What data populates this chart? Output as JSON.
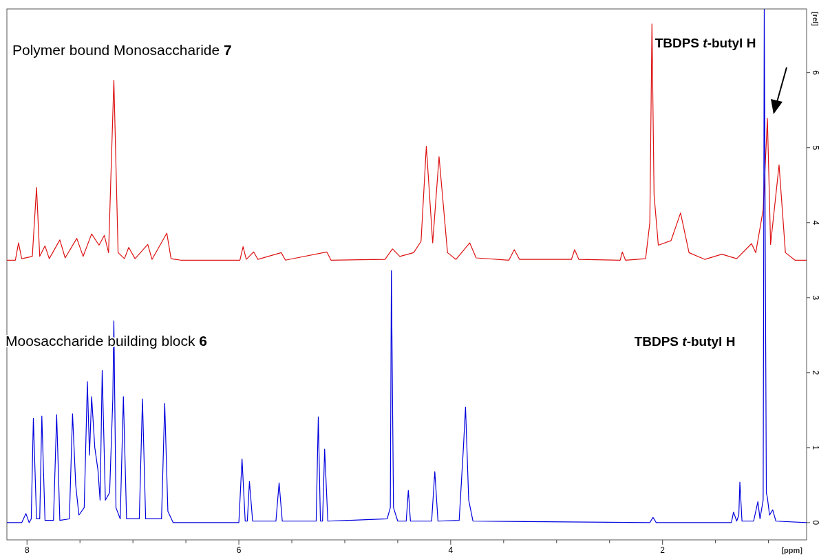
{
  "chart_data": {
    "type": "line",
    "xlabel": "[ppm]",
    "ylabel": "[rel]",
    "xlim": [
      8.19,
      0.64
    ],
    "ylim": [
      -0.23,
      6.85
    ],
    "xticks": [
      8,
      {
        "value": 7.5,
        "label": null
      },
      {
        "value": 7,
        "label": null
      },
      {
        "value": 6.5,
        "label": null
      },
      6,
      {
        "value": 5.5,
        "label": null
      },
      {
        "value": 5,
        "label": null
      },
      {
        "value": 4.5,
        "label": null
      },
      4,
      {
        "value": 3.5,
        "label": null
      },
      {
        "value": 3,
        "label": null
      },
      {
        "value": 2.5,
        "label": null
      },
      2,
      {
        "value": 1.5,
        "label": null
      },
      {
        "value": 1,
        "label": null
      }
    ],
    "yticks": [
      0,
      1,
      2,
      3,
      4,
      5,
      6
    ],
    "grid": false,
    "marker": "none",
    "line_style": "solid",
    "annotations": [
      "Polymer bound Monosaccharide 7",
      "Moosaccharide building block 6",
      "TBDPS t-butyl H",
      "TBDPS t-butyl H"
    ],
    "series": [
      {
        "color": "#dd1111",
        "x": [
          8.19,
          8.11,
          8.08,
          8.05,
          7.95,
          7.91,
          7.88,
          7.83,
          7.79,
          7.69,
          7.64,
          7.53,
          7.47,
          7.39,
          7.32,
          7.27,
          7.23,
          7.18,
          7.14,
          7.08,
          7.04,
          6.98,
          6.86,
          6.82,
          6.68,
          6.64,
          6.55,
          5.99,
          5.96,
          5.93,
          5.86,
          5.82,
          5.6,
          5.56,
          5.17,
          5.13,
          4.62,
          4.55,
          4.48,
          4.35,
          4.28,
          4.23,
          4.17,
          4.11,
          4.03,
          3.95,
          3.82,
          3.76,
          3.45,
          3.4,
          3.35,
          2.86,
          2.83,
          2.79,
          2.4,
          2.38,
          2.35,
          2.16,
          2.12,
          2.1,
          2.08,
          2.04,
          1.92,
          1.83,
          1.75,
          1.6,
          1.44,
          1.3,
          1.16,
          1.12,
          1.05,
          1.03,
          1.01,
          0.98,
          0.9,
          0.84,
          0.75,
          0.64
        ],
        "values": [
          3.5,
          3.5,
          3.73,
          3.52,
          3.55,
          4.47,
          3.55,
          3.69,
          3.52,
          3.77,
          3.53,
          3.79,
          3.55,
          3.85,
          3.7,
          3.83,
          3.6,
          5.9,
          3.6,
          3.52,
          3.67,
          3.52,
          3.71,
          3.51,
          3.86,
          3.52,
          3.5,
          3.5,
          3.68,
          3.51,
          3.61,
          3.51,
          3.6,
          3.5,
          3.61,
          3.5,
          3.51,
          3.65,
          3.55,
          3.6,
          3.75,
          5.02,
          3.73,
          4.88,
          3.6,
          3.51,
          3.73,
          3.53,
          3.5,
          3.64,
          3.51,
          3.51,
          3.64,
          3.51,
          3.5,
          3.61,
          3.5,
          3.52,
          4.0,
          6.65,
          4.37,
          3.7,
          3.76,
          4.13,
          3.6,
          3.51,
          3.58,
          3.52,
          3.72,
          3.6,
          4.17,
          null,
          5.39,
          3.71,
          4.77,
          3.6,
          3.5,
          3.5
        ]
      },
      {
        "color": "#0000dd",
        "x": [
          8.19,
          8.05,
          8.01,
          7.98,
          7.96,
          7.94,
          7.91,
          7.88,
          7.86,
          7.83,
          7.75,
          7.72,
          7.69,
          7.6,
          7.57,
          7.54,
          7.51,
          7.46,
          7.43,
          7.41,
          7.39,
          7.36,
          7.33,
          7.31,
          7.29,
          7.26,
          7.22,
          7.19,
          7.18,
          7.16,
          7.12,
          7.09,
          7.06,
          6.94,
          6.91,
          6.88,
          6.73,
          6.7,
          6.67,
          6.62,
          6.0,
          5.97,
          5.94,
          5.92,
          5.9,
          5.87,
          5.65,
          5.62,
          5.59,
          5.27,
          5.25,
          5.23,
          5.21,
          5.19,
          5.16,
          4.6,
          4.57,
          4.56,
          4.54,
          4.5,
          4.42,
          4.4,
          4.38,
          4.18,
          4.15,
          4.12,
          3.92,
          3.88,
          3.86,
          3.83,
          3.79,
          2.12,
          2.09,
          2.06,
          1.35,
          1.33,
          1.3,
          1.28,
          1.27,
          1.25,
          1.14,
          1.1,
          1.08,
          1.05,
          1.04,
          1.02,
          1.01,
          0.99,
          0.96,
          0.93,
          0.64
        ],
        "values": [
          0,
          0,
          0.12,
          0,
          0.05,
          1.39,
          0.05,
          0.05,
          1.42,
          0.03,
          0.03,
          1.44,
          0.03,
          0.05,
          1.45,
          0.5,
          0.1,
          0.2,
          1.88,
          0.9,
          1.68,
          1.0,
          0.7,
          0.3,
          2.03,
          0.3,
          0.4,
          1.65,
          2.69,
          0.2,
          0.05,
          1.68,
          0.05,
          0.05,
          1.65,
          0.05,
          0.05,
          1.59,
          0.15,
          0,
          0,
          0.85,
          0.02,
          0.02,
          0.55,
          0.02,
          0.02,
          0.53,
          0.02,
          0.02,
          1.41,
          0.02,
          0.02,
          0.98,
          0.02,
          0.05,
          0.2,
          3.36,
          0.2,
          0.02,
          0.02,
          0.43,
          0.02,
          0.02,
          0.68,
          0.02,
          0.03,
          1.0,
          1.54,
          0.3,
          0.02,
          0,
          0.07,
          0,
          0,
          0.14,
          0.02,
          0.1,
          0.54,
          0.02,
          0.02,
          0.28,
          0.05,
          0.3,
          6.85,
          0.4,
          0.33,
          0.1,
          0.17,
          0.02,
          0
        ]
      }
    ]
  }
}
